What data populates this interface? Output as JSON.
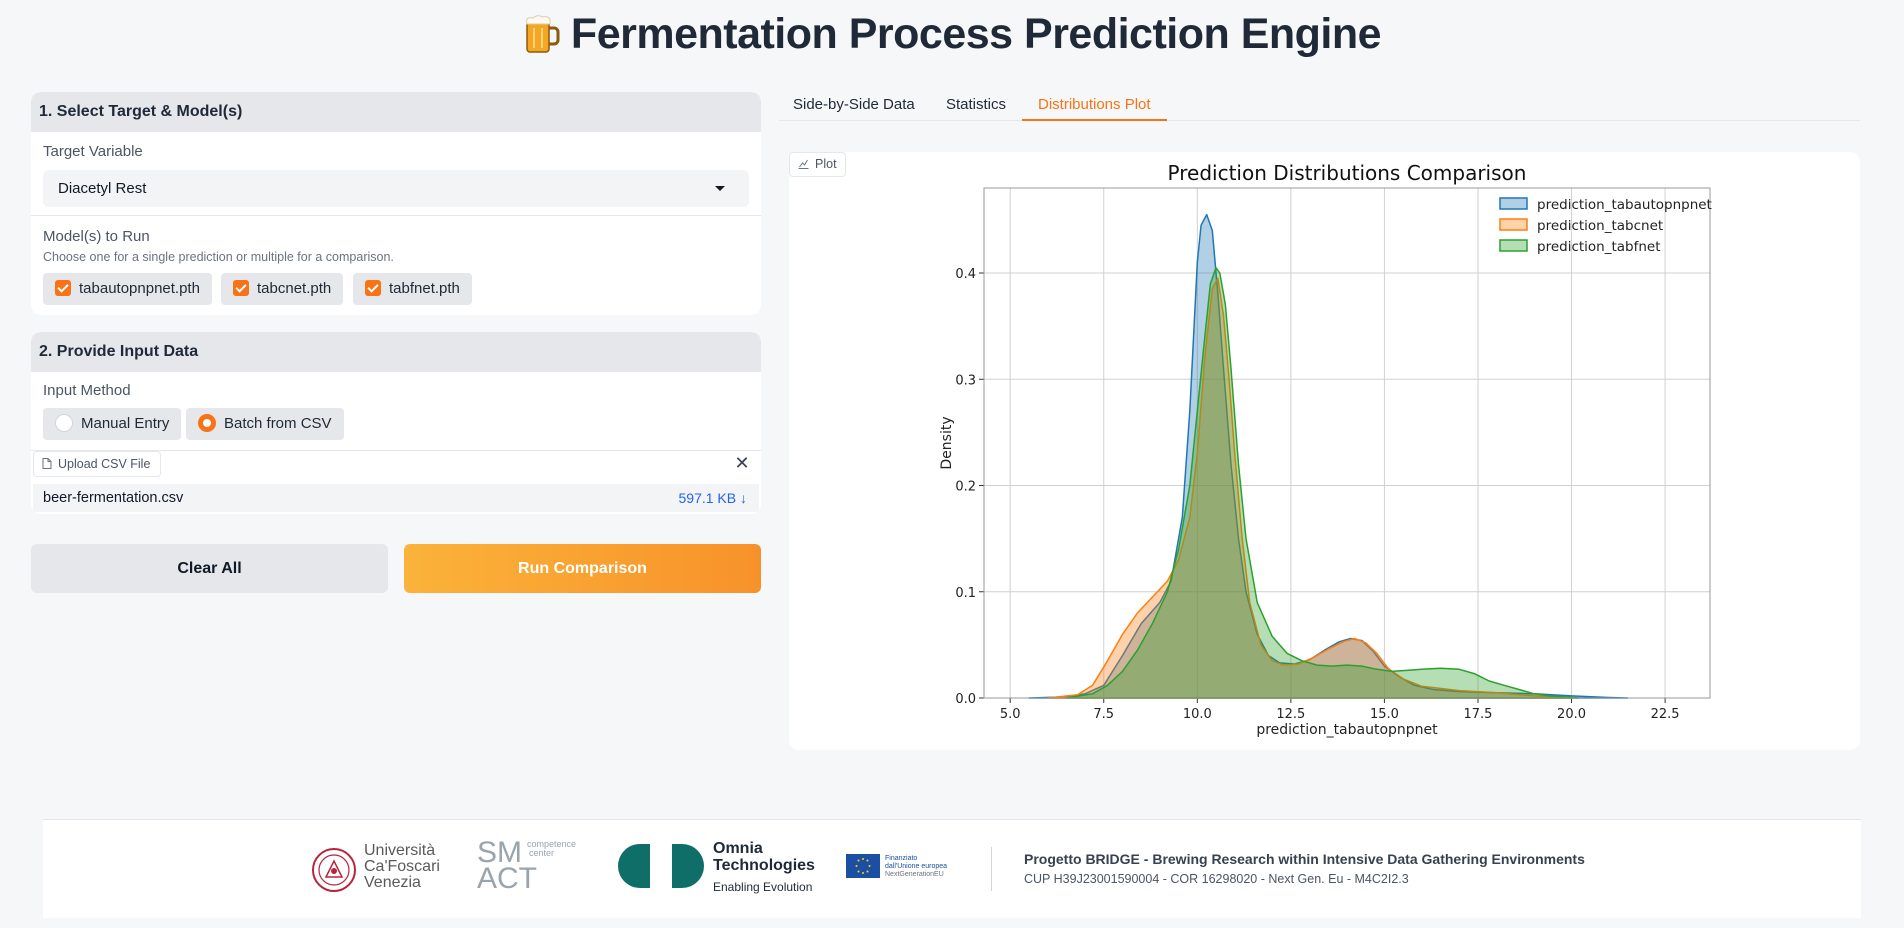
{
  "app": {
    "title": "Fermentation Process Prediction Engine",
    "title_icon": "beer-mug-icon"
  },
  "section1": {
    "header": "1. Select Target & Model(s)",
    "target_label": "Target Variable",
    "target_value": "Diacetyl Rest",
    "models_label": "Model(s) to Run",
    "models_hint": "Choose one for a single prediction or multiple for a comparison.",
    "models": [
      {
        "label": "tabautopnpnet.pth",
        "checked": true
      },
      {
        "label": "tabcnet.pth",
        "checked": true
      },
      {
        "label": "tabfnet.pth",
        "checked": true
      }
    ]
  },
  "section2": {
    "header": "2. Provide Input Data",
    "method_label": "Input Method",
    "methods": [
      {
        "label": "Manual Entry",
        "selected": false
      },
      {
        "label": "Batch from CSV",
        "selected": true
      }
    ],
    "upload_label": "Upload CSV File",
    "file_name": "beer-fermentation.csv",
    "file_size": "597.1 KB ↓"
  },
  "buttons": {
    "clear": "Clear All",
    "run": "Run Comparison"
  },
  "tabs": [
    {
      "label": "Side-by-Side Data",
      "active": false
    },
    {
      "label": "Statistics",
      "active": false
    },
    {
      "label": "Distributions Plot",
      "active": true
    }
  ],
  "plot_badge": "Plot",
  "chart_data": {
    "type": "area",
    "title": "Prediction Distributions Comparison",
    "xlabel": "prediction_tabautopnpnet",
    "ylabel": "Density",
    "xlim": [
      4.3,
      23.7
    ],
    "ylim": [
      0,
      0.48
    ],
    "xticks": [
      "5.0",
      "7.5",
      "10.0",
      "12.5",
      "15.0",
      "17.5",
      "20.0",
      "22.5"
    ],
    "yticks": [
      "0.0",
      "0.1",
      "0.2",
      "0.3",
      "0.4"
    ],
    "grid": true,
    "legend": "top-right",
    "series": [
      {
        "name": "prediction_tabautopnpnet",
        "color": "#1f77b4",
        "x": [
          5.5,
          6.5,
          7.0,
          7.5,
          8.0,
          8.5,
          9.0,
          9.3,
          9.6,
          9.8,
          10.0,
          10.1,
          10.25,
          10.4,
          10.55,
          10.7,
          10.9,
          11.1,
          11.3,
          11.6,
          11.9,
          12.2,
          12.6,
          13.0,
          13.4,
          13.8,
          14.1,
          14.4,
          14.7,
          15.0,
          15.4,
          15.8,
          16.3,
          17.0,
          18.0,
          19.0,
          20.0,
          21.0,
          21.5
        ],
        "y": [
          0.0,
          0.001,
          0.004,
          0.012,
          0.04,
          0.07,
          0.09,
          0.11,
          0.17,
          0.27,
          0.41,
          0.445,
          0.455,
          0.44,
          0.38,
          0.31,
          0.22,
          0.15,
          0.1,
          0.06,
          0.04,
          0.033,
          0.032,
          0.036,
          0.045,
          0.053,
          0.056,
          0.054,
          0.044,
          0.03,
          0.02,
          0.012,
          0.008,
          0.006,
          0.005,
          0.004,
          0.002,
          0.0005,
          0.0
        ]
      },
      {
        "name": "prediction_tabcnet",
        "color": "#ff7f0e",
        "x": [
          6.0,
          6.8,
          7.2,
          7.6,
          8.0,
          8.4,
          8.8,
          9.2,
          9.5,
          9.8,
          10.0,
          10.2,
          10.4,
          10.55,
          10.7,
          10.85,
          11.0,
          11.2,
          11.4,
          11.7,
          12.0,
          12.3,
          12.7,
          13.1,
          13.5,
          13.9,
          14.2,
          14.5,
          14.8,
          15.1,
          15.5,
          16.0,
          17.0,
          18.0,
          19.0,
          20.0
        ],
        "y": [
          0.0,
          0.003,
          0.012,
          0.035,
          0.06,
          0.08,
          0.095,
          0.11,
          0.13,
          0.17,
          0.23,
          0.32,
          0.385,
          0.395,
          0.36,
          0.3,
          0.23,
          0.15,
          0.09,
          0.05,
          0.035,
          0.031,
          0.032,
          0.038,
          0.046,
          0.053,
          0.056,
          0.052,
          0.042,
          0.028,
          0.018,
          0.011,
          0.007,
          0.005,
          0.002,
          0.0
        ]
      },
      {
        "name": "prediction_tabfnet",
        "color": "#2ca02c",
        "x": [
          6.5,
          7.2,
          7.6,
          8.0,
          8.4,
          8.8,
          9.2,
          9.5,
          9.8,
          10.0,
          10.2,
          10.35,
          10.5,
          10.6,
          10.75,
          10.9,
          11.1,
          11.3,
          11.6,
          12.0,
          12.4,
          12.8,
          13.2,
          13.6,
          14.0,
          14.4,
          14.8,
          15.2,
          15.6,
          16.0,
          16.5,
          17.0,
          17.4,
          17.8,
          18.2,
          18.6,
          19.0,
          19.4,
          19.8,
          20.2
        ],
        "y": [
          0.0,
          0.004,
          0.012,
          0.025,
          0.045,
          0.07,
          0.1,
          0.14,
          0.2,
          0.27,
          0.34,
          0.39,
          0.405,
          0.4,
          0.37,
          0.31,
          0.22,
          0.15,
          0.09,
          0.058,
          0.042,
          0.035,
          0.031,
          0.03,
          0.031,
          0.03,
          0.027,
          0.025,
          0.026,
          0.027,
          0.028,
          0.027,
          0.023,
          0.016,
          0.012,
          0.008,
          0.004,
          0.002,
          0.001,
          0.0
        ]
      }
    ]
  },
  "footer": {
    "logo1_lines": [
      "Università",
      "Ca'Foscari",
      "Venezia"
    ],
    "logo2_main": "SM ACT",
    "logo2_tag": [
      "competence",
      "center"
    ],
    "logo3_lines": [
      "Omnia",
      "Technologies"
    ],
    "logo3_tag": "Enabling Evolution",
    "logo4_lines": [
      "Finanziato",
      "dall'Unione europea",
      "NextGenerationEU"
    ],
    "project_title": "Progetto BRIDGE - Brewing Research within Intensive Data Gathering Environments",
    "project_sub": "CUP H39J23001590004 - COR 16298020 - Next Gen. Eu - M4C2I2.3"
  }
}
